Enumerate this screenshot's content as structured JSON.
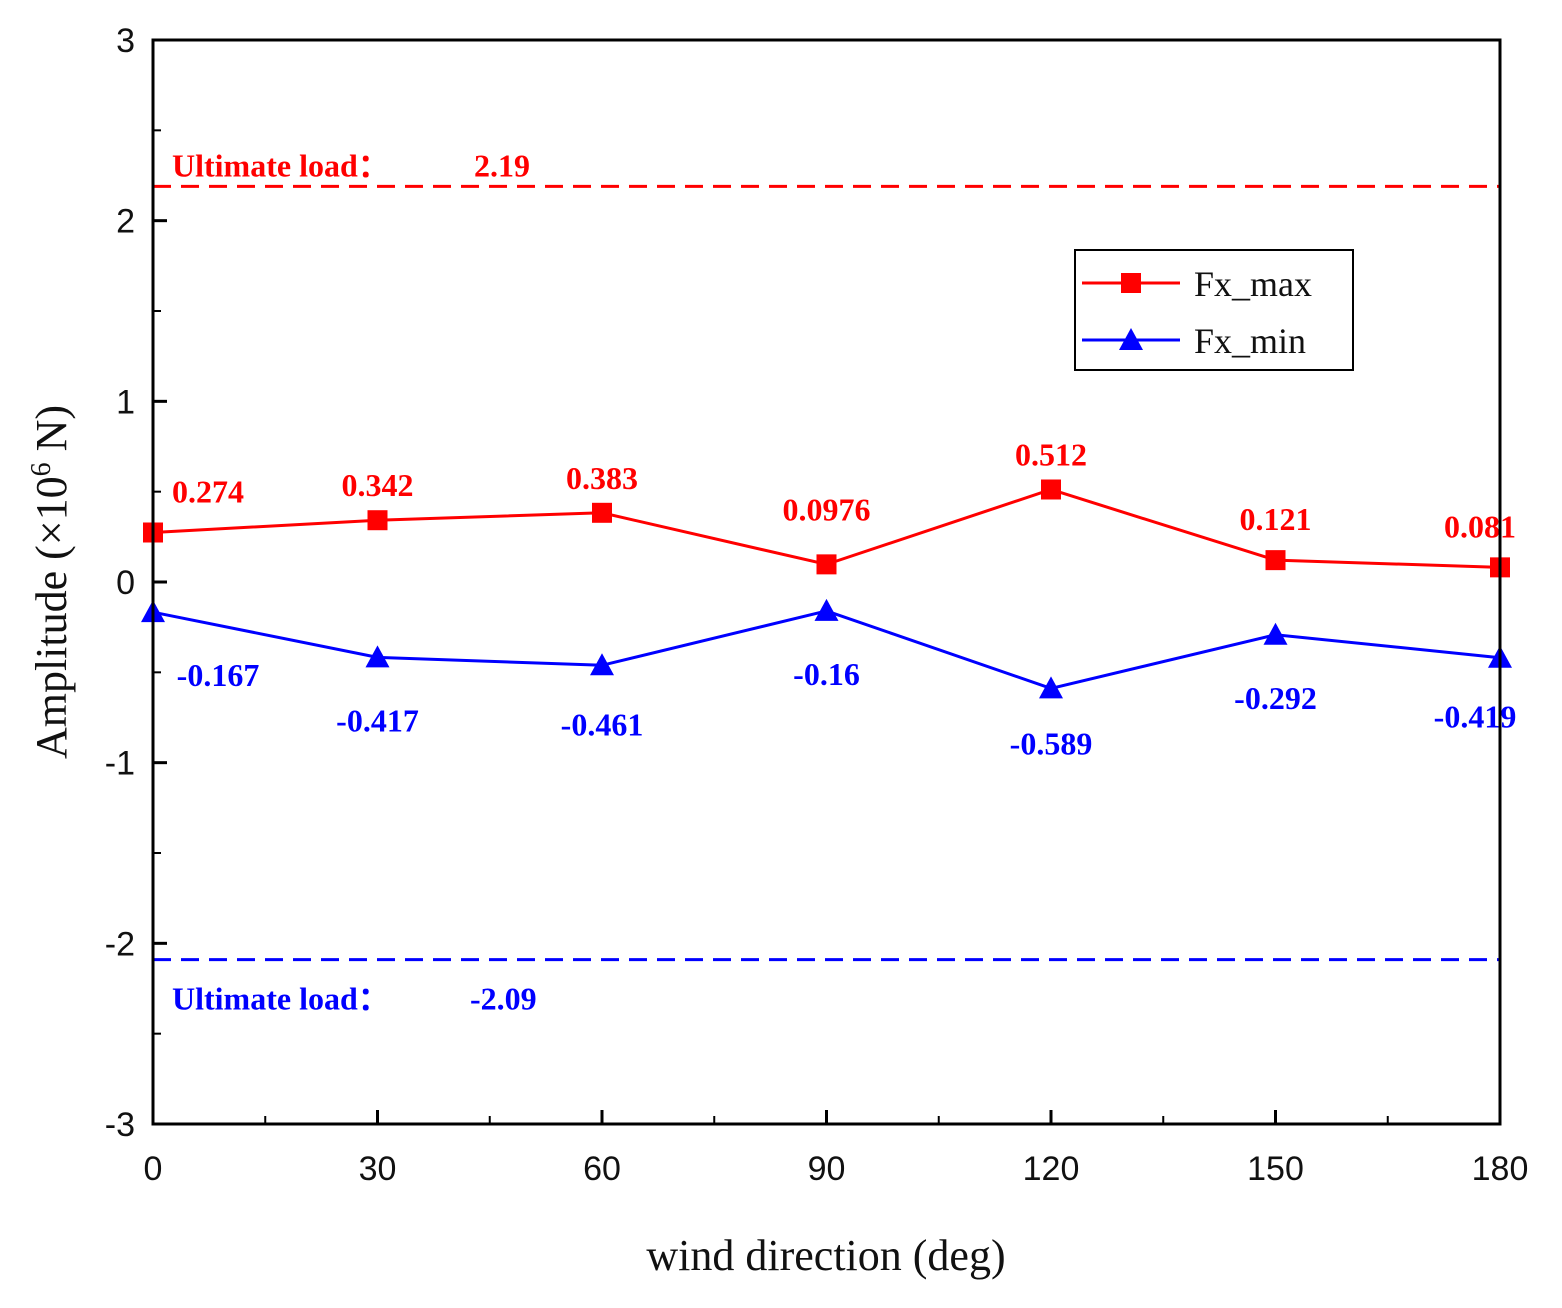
{
  "chart_data": {
    "type": "line",
    "xlabel": "wind direction (deg)",
    "ylabel": {
      "prefix": "Amplitude (×10",
      "sup": "6",
      "suffix": " N)"
    },
    "x": [
      0,
      30,
      60,
      90,
      120,
      150,
      180
    ],
    "xlim": [
      0,
      180
    ],
    "ylim": [
      -3,
      3
    ],
    "xticks": [
      "0",
      "30",
      "60",
      "90",
      "120",
      "150",
      "180"
    ],
    "yticks": [
      "3",
      "2",
      "1",
      "0",
      "-1",
      "-2",
      "-3"
    ],
    "series": [
      {
        "name": "Fx_max",
        "color": "#ff0000",
        "marker": "square",
        "values": [
          0.274,
          0.342,
          0.383,
          0.0976,
          0.512,
          0.121,
          0.081
        ],
        "labels": [
          "0.274",
          "0.342",
          "0.383",
          "0.0976",
          "0.512",
          "0.121",
          "0.081"
        ]
      },
      {
        "name": "Fx_min",
        "color": "#0000ff",
        "marker": "triangle",
        "values": [
          -0.167,
          -0.417,
          -0.461,
          -0.16,
          -0.589,
          -0.292,
          -0.419
        ],
        "labels": [
          "-0.167",
          "-0.417",
          "-0.461",
          "-0.16",
          "-0.589",
          "-0.292",
          "-0.419"
        ]
      }
    ],
    "reference_lines": [
      {
        "name": "upper",
        "value": 2.19,
        "label": "Ultimate load：",
        "value_text": "2.19",
        "color": "#ff0000",
        "style": "dashed"
      },
      {
        "name": "lower",
        "value": -2.09,
        "label": "Ultimate load：",
        "value_text": "-2.09",
        "color": "#0000ff",
        "style": "dashed"
      }
    ],
    "legend": {
      "position": "upper-right"
    },
    "grid": false
  }
}
